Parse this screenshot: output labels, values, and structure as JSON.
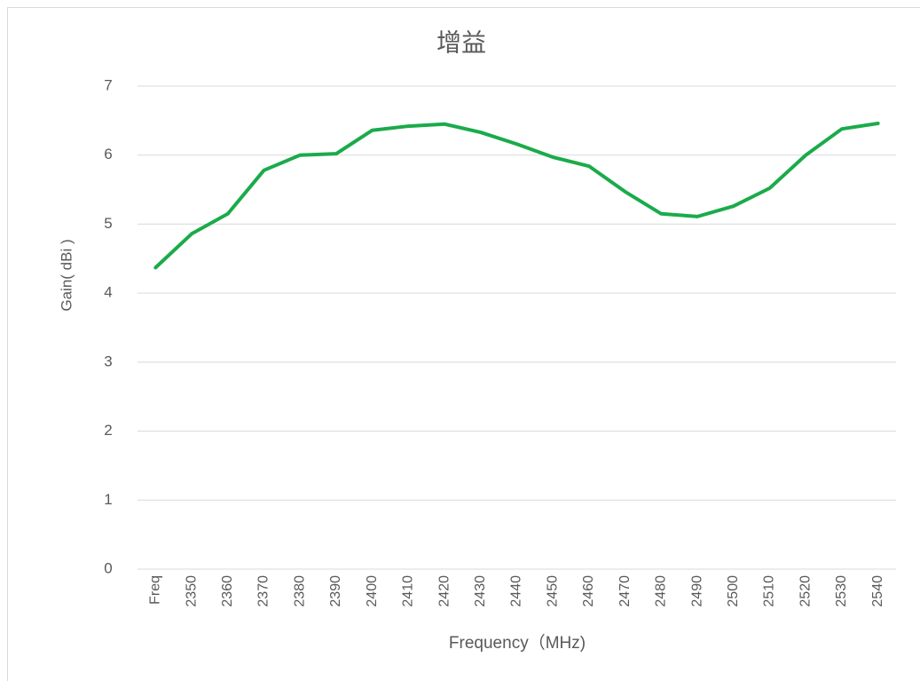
{
  "chart_data": {
    "type": "line",
    "title": "增益",
    "x_label": "Frequency（MHz)",
    "y_label": "Gain( dBi )",
    "categories": [
      "Freq",
      "2350",
      "2360",
      "2370",
      "2380",
      "2390",
      "2400",
      "2410",
      "2420",
      "2430",
      "2440",
      "2450",
      "2460",
      "2470",
      "2480",
      "2490",
      "2500",
      "2510",
      "2520",
      "2530",
      "2540"
    ],
    "series": [
      {
        "name": "Gain",
        "color": "#1aab4a",
        "values": [
          4.37,
          4.86,
          5.15,
          5.78,
          6.0,
          6.02,
          6.36,
          6.42,
          6.45,
          6.33,
          6.16,
          5.97,
          5.84,
          5.47,
          5.15,
          5.11,
          5.26,
          5.52,
          6.0,
          6.38,
          6.46
        ]
      }
    ],
    "ylim": [
      0,
      7
    ],
    "yticks": [
      0,
      1,
      2,
      3,
      4,
      5,
      6,
      7
    ],
    "grid": true
  }
}
